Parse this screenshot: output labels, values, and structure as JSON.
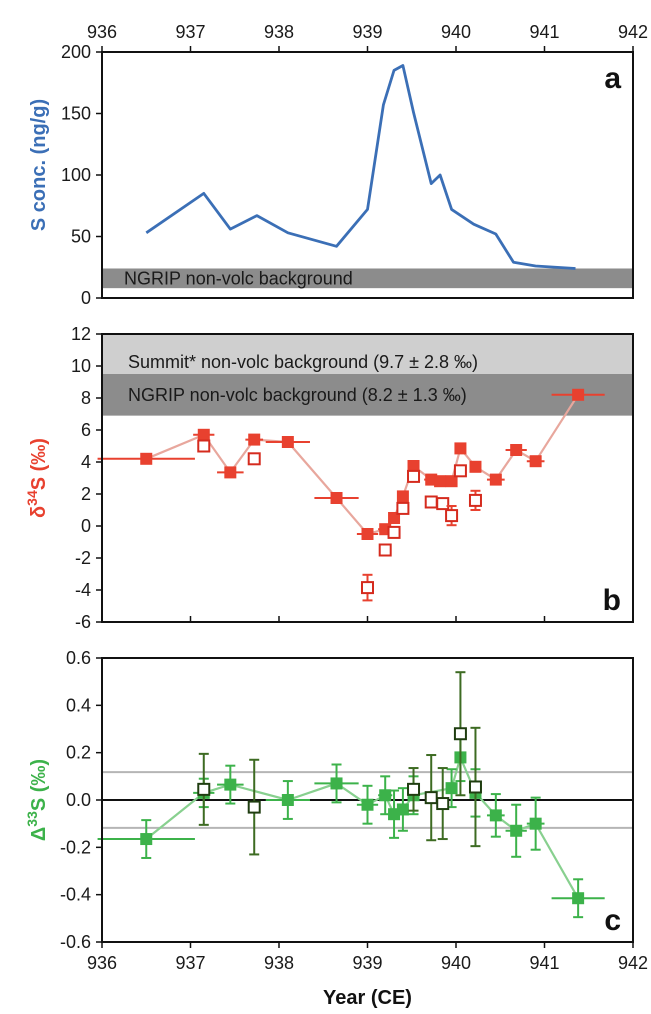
{
  "colors": {
    "panel_a_line": "#3b6fb6",
    "panel_b_main": "#e8412f",
    "panel_b_line": "#e8a79d",
    "panel_c_main": "#3cb24a",
    "panel_c_dark": "#3d6b22",
    "panel_c_line": "#88d08f",
    "ngrip_band": "#8c8c8c",
    "summit_band": "#cfcfcf",
    "ref_line": "#b5b5b5"
  },
  "chart_data": [
    {
      "type": "line",
      "panel_label": "a",
      "ylabel": "S conc. (ng/g)",
      "xlim": [
        936,
        942
      ],
      "ylim": [
        0,
        200
      ],
      "x_ticks": [
        "936",
        "937",
        "938",
        "939",
        "940",
        "941",
        "942"
      ],
      "y_ticks": [
        "0",
        "50",
        "100",
        "150",
        "200"
      ],
      "x_ticks_position": "top",
      "bands": [
        {
          "label": "NGRIP non-volc background",
          "y0": 8,
          "y1": 24
        }
      ],
      "series": [
        {
          "x": [
            936.5,
            937.15,
            937.45,
            937.75,
            938.1,
            938.65,
            939.0,
            939.18,
            939.3,
            939.4,
            939.52,
            939.72,
            939.82,
            939.95,
            940.2,
            940.45,
            940.65,
            940.9,
            941.35
          ],
          "y": [
            53,
            85,
            56,
            67,
            53,
            42,
            72,
            157,
            185,
            189,
            151,
            93,
            100,
            72,
            60,
            52,
            29,
            26,
            24
          ]
        }
      ]
    },
    {
      "type": "scatter",
      "panel_label": "b",
      "ylabel_main": "δ",
      "ylabel_sup": "34",
      "ylabel_tail": "S (‰)",
      "xlim": [
        936,
        942
      ],
      "ylim": [
        -6,
        12
      ],
      "y_ticks": [
        "-6",
        "-4",
        "-2",
        "0",
        "2",
        "4",
        "6",
        "8",
        "10",
        "12"
      ],
      "bands": [
        {
          "label": "Summit* non-volc background (9.7 ± 2.8 ‰)",
          "y0": 6.9,
          "y1": 12.5
        },
        {
          "label": "NGRIP non-volc background (8.2 ± 1.3 ‰)",
          "y0": 6.9,
          "y1": 9.5
        }
      ],
      "series": [
        {
          "style": "filled",
          "connected": true,
          "points": [
            {
              "x": 936.5,
              "y": 4.2,
              "xerr": 0.55,
              "yerr": 0
            },
            {
              "x": 937.15,
              "y": 5.7,
              "xerr": 0.12,
              "yerr": 0
            },
            {
              "x": 937.45,
              "y": 3.35,
              "xerr": 0.15,
              "yerr": 0
            },
            {
              "x": 937.72,
              "y": 5.4,
              "xerr": 0.1,
              "yerr": 0
            },
            {
              "x": 938.1,
              "y": 5.25,
              "xerr": 0.25,
              "yerr": 0
            },
            {
              "x": 938.65,
              "y": 1.75,
              "xerr": 0.25,
              "yerr": 0
            },
            {
              "x": 939.0,
              "y": -0.5,
              "xerr": 0.12,
              "yerr": 0
            },
            {
              "x": 939.2,
              "y": -0.2,
              "xerr": 0.08,
              "yerr": 0
            },
            {
              "x": 939.3,
              "y": 0.5,
              "xerr": 0.05,
              "yerr": 0
            },
            {
              "x": 939.4,
              "y": 1.85,
              "xerr": 0.05,
              "yerr": 0
            },
            {
              "x": 939.52,
              "y": 3.75,
              "xerr": 0.06,
              "yerr": 0
            },
            {
              "x": 939.72,
              "y": 2.9,
              "xerr": 0.08,
              "yerr": 0
            },
            {
              "x": 939.82,
              "y": 2.8,
              "xerr": 0.06,
              "yerr": 0
            },
            {
              "x": 939.95,
              "y": 2.8,
              "xerr": 0.06,
              "yerr": 0
            },
            {
              "x": 940.05,
              "y": 4.85,
              "xerr": 0.05,
              "yerr": 0
            },
            {
              "x": 940.22,
              "y": 3.7,
              "xerr": 0.06,
              "yerr": 0
            },
            {
              "x": 940.45,
              "y": 2.9,
              "xerr": 0.1,
              "yerr": 0
            },
            {
              "x": 940.68,
              "y": 4.75,
              "xerr": 0.12,
              "yerr": 0
            },
            {
              "x": 940.9,
              "y": 4.05,
              "xerr": 0.1,
              "yerr": 0
            },
            {
              "x": 941.38,
              "y": 8.2,
              "xerr": 0.3,
              "yerr": 0
            }
          ]
        },
        {
          "style": "open",
          "connected": false,
          "points": [
            {
              "x": 937.15,
              "y": 5.0,
              "xerr": 0,
              "yerr": 0
            },
            {
              "x": 937.72,
              "y": 4.2,
              "xerr": 0,
              "yerr": 0
            },
            {
              "x": 939.0,
              "y": -3.85,
              "xerr": 0,
              "yerr": 0.8
            },
            {
              "x": 939.2,
              "y": -1.5,
              "xerr": 0,
              "yerr": 0
            },
            {
              "x": 939.3,
              "y": -0.4,
              "xerr": 0,
              "yerr": 0
            },
            {
              "x": 939.4,
              "y": 1.1,
              "xerr": 0,
              "yerr": 0
            },
            {
              "x": 939.52,
              "y": 3.1,
              "xerr": 0,
              "yerr": 0
            },
            {
              "x": 939.72,
              "y": 1.5,
              "xerr": 0,
              "yerr": 0
            },
            {
              "x": 939.85,
              "y": 1.4,
              "xerr": 0,
              "yerr": 0
            },
            {
              "x": 939.95,
              "y": 0.65,
              "xerr": 0,
              "yerr": 0.6
            },
            {
              "x": 940.05,
              "y": 3.45,
              "xerr": 0,
              "yerr": 0
            },
            {
              "x": 940.22,
              "y": 1.6,
              "xerr": 0,
              "yerr": 0.6
            }
          ]
        }
      ]
    },
    {
      "type": "scatter",
      "panel_label": "c",
      "ylabel_main": "Δ",
      "ylabel_sup": "33",
      "ylabel_tail": "S (‰)",
      "xlabel": "Year (CE)",
      "xlim": [
        936,
        942
      ],
      "ylim": [
        -0.6,
        0.6
      ],
      "x_ticks": [
        "936",
        "937",
        "938",
        "939",
        "940",
        "941",
        "942"
      ],
      "y_ticks": [
        "-0.6",
        "-0.4",
        "-0.2",
        "0.0",
        "0.2",
        "0.4",
        "0.6"
      ],
      "ref_lines": [
        0.118,
        -0.118
      ],
      "series": [
        {
          "style": "filled",
          "connected": true,
          "points": [
            {
              "x": 936.5,
              "y": -0.165,
              "xerr": 0.55,
              "yerr": 0.08
            },
            {
              "x": 937.15,
              "y": 0.03,
              "xerr": 0.12,
              "yerr": 0.06
            },
            {
              "x": 937.45,
              "y": 0.065,
              "xerr": 0.15,
              "yerr": 0.08
            },
            {
              "x": 938.1,
              "y": 0.0,
              "xerr": 0.25,
              "yerr": 0.08
            },
            {
              "x": 938.65,
              "y": 0.07,
              "xerr": 0.25,
              "yerr": 0.08
            },
            {
              "x": 939.0,
              "y": -0.02,
              "xerr": 0.12,
              "yerr": 0.08
            },
            {
              "x": 939.2,
              "y": 0.02,
              "xerr": 0.08,
              "yerr": 0.08
            },
            {
              "x": 939.3,
              "y": -0.06,
              "xerr": 0.05,
              "yerr": 0.1
            },
            {
              "x": 939.4,
              "y": -0.04,
              "xerr": 0.05,
              "yerr": 0.09
            },
            {
              "x": 939.52,
              "y": 0.02,
              "xerr": 0.06,
              "yerr": 0.08
            },
            {
              "x": 939.95,
              "y": 0.05,
              "xerr": 0.06,
              "yerr": 0.08
            },
            {
              "x": 940.05,
              "y": 0.18,
              "xerr": 0.05,
              "yerr": 0.1
            },
            {
              "x": 940.22,
              "y": 0.03,
              "xerr": 0.06,
              "yerr": 0.1
            },
            {
              "x": 940.45,
              "y": -0.065,
              "xerr": 0.1,
              "yerr": 0.09
            },
            {
              "x": 940.68,
              "y": -0.13,
              "xerr": 0.12,
              "yerr": 0.11
            },
            {
              "x": 940.9,
              "y": -0.1,
              "xerr": 0.1,
              "yerr": 0.11
            },
            {
              "x": 941.38,
              "y": -0.415,
              "xerr": 0.3,
              "yerr": 0.08
            }
          ]
        },
        {
          "style": "open",
          "connected": false,
          "points": [
            {
              "x": 937.15,
              "y": 0.045,
              "xerr": 0,
              "yerr": 0.15
            },
            {
              "x": 937.72,
              "y": -0.03,
              "xerr": 0,
              "yerr": 0.2
            },
            {
              "x": 939.52,
              "y": 0.045,
              "xerr": 0,
              "yerr": 0.09
            },
            {
              "x": 939.72,
              "y": 0.01,
              "xerr": 0,
              "yerr": 0.18
            },
            {
              "x": 939.85,
              "y": -0.015,
              "xerr": 0,
              "yerr": 0.15
            },
            {
              "x": 940.05,
              "y": 0.28,
              "xerr": 0,
              "yerr": 0.26
            },
            {
              "x": 940.22,
              "y": 0.055,
              "xerr": 0,
              "yerr": 0.25
            }
          ]
        }
      ]
    }
  ]
}
